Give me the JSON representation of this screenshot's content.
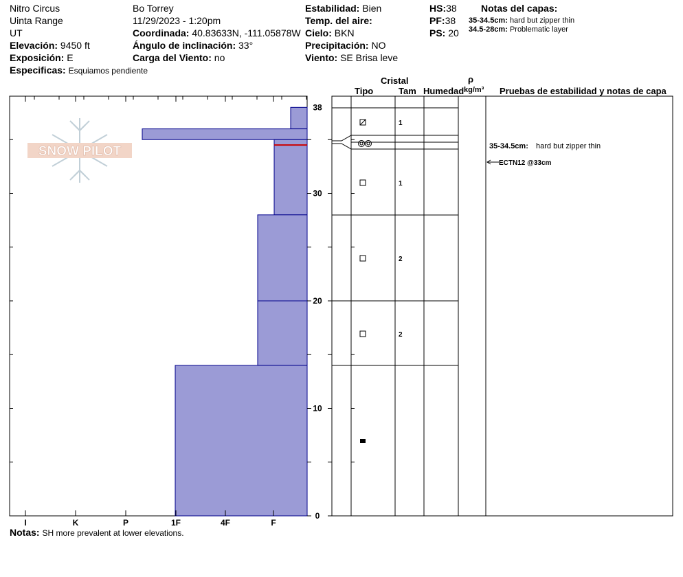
{
  "header": {
    "location": "Nitro Circus",
    "range": "Uinta Range",
    "state": "UT",
    "elevation_label": "Elevación:",
    "elevation": "9450 ft",
    "aspect_label": "Exposición:",
    "aspect": "E",
    "specifics_label": "Especificas:",
    "specifics": "Esquiamos pendiente",
    "observer": "Bo Torrey",
    "datetime": "11/29/2023 - 1:20pm",
    "coord_label": "Coordinada:",
    "coord": "40.83633N, -111.05878W",
    "slope_label": "Ángulo de inclinación:",
    "slope": "33°",
    "wind_load_label": "Carga del Viento:",
    "wind_load": "no",
    "stability_label": "Estabilidad:",
    "stability": "Bien",
    "air_temp_label": "Temp. del aire:",
    "air_temp": "",
    "sky_label": "Cielo:",
    "sky": "BKN",
    "precip_label": "Precipitación:",
    "precip": "NO",
    "wind_label": "Viento:",
    "wind": "SE Brisa leve",
    "hs_label": "HS:",
    "hs": "38",
    "pf_label": "PF:",
    "pf": "38",
    "ps_label": "PS:",
    "ps": "20",
    "layer_notes_title": "Notas del capas:",
    "layer_notes": [
      {
        "range": "35-34.5cm:",
        "text": "hard but zipper thin"
      },
      {
        "range": "34.5-28cm:",
        "text": "Problematic layer"
      }
    ]
  },
  "columns": {
    "crystal": "Cristal",
    "type": "Tipo",
    "size": "Tam",
    "moisture": "Humedad",
    "rho": "ρ",
    "density_unit": "kg/m³",
    "tests": "Pruebas de estabilidad y notas de capa"
  },
  "notes_label": "Notas:",
  "notes": "SH more prevalent at lower elevations.",
  "logo_text": "SNOW PILOT",
  "colors": {
    "layer_fill": "#9b9bd6",
    "layer_line": "#00008b",
    "weak_layer": "#cc0000"
  },
  "chart_data": {
    "type": "snow_profile",
    "y_axis": {
      "min": 0,
      "max": 38,
      "ticks": [
        0,
        10,
        20,
        30,
        38
      ]
    },
    "hardness_scale": [
      "I",
      "K",
      "P",
      "1F",
      "4F",
      "F"
    ],
    "layers": [
      {
        "top": 38,
        "bottom": 36,
        "hardness": 0.3,
        "crystal_icon": "grain-facet-icon",
        "size": "1"
      },
      {
        "top": 36,
        "bottom": 35,
        "hardness": 3.4,
        "crystal_icon": "melt-form-icon",
        "size": ""
      },
      {
        "top": 35,
        "bottom": 28,
        "hardness": 0.65,
        "crystal_icon": "facet-icon",
        "size": "1"
      },
      {
        "top": 28,
        "bottom": 20,
        "hardness": 1.0,
        "crystal_icon": "facet-icon",
        "size": "2"
      },
      {
        "top": 20,
        "bottom": 14,
        "hardness": 1.0,
        "crystal_icon": "facet-icon",
        "size": "2"
      },
      {
        "top": 14,
        "bottom": 0,
        "hardness": 2.5,
        "crystal_icon": "rounded-icon",
        "size": ""
      }
    ],
    "weak_layer_depth": 34.5,
    "layer_note": {
      "range": "35-34.5cm:",
      "text": "hard but zipper thin"
    },
    "test_result": {
      "label": "ECTN12 @33cm",
      "depth": 33
    }
  }
}
